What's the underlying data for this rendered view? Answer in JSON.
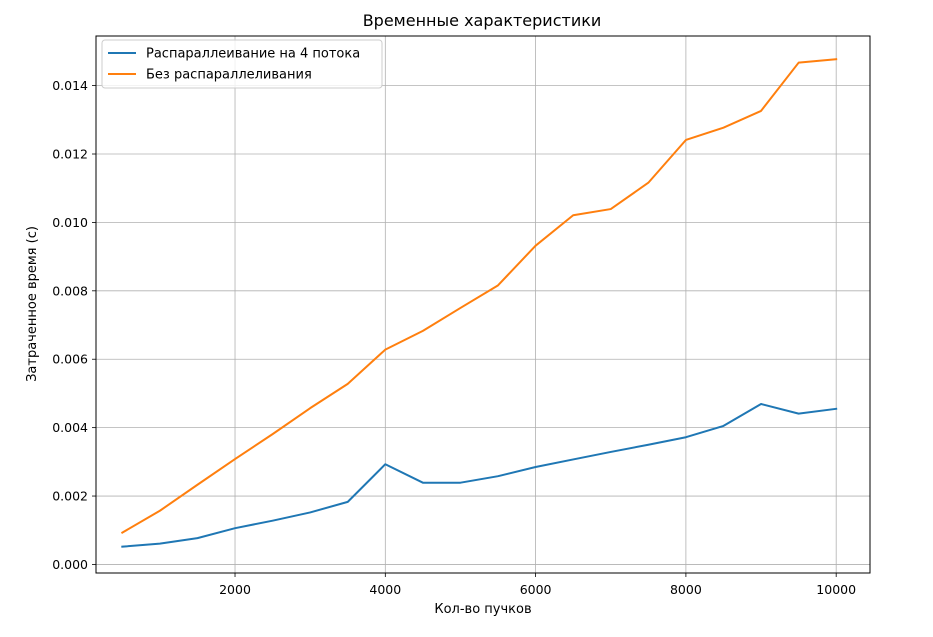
{
  "chart_data": {
    "type": "line",
    "title": "Временные характеристики",
    "xlabel": "Кол-во пучков",
    "ylabel": "Затраченное время (с)",
    "xlim": [
      150,
      10450
    ],
    "ylim": [
      -0.00025,
      0.01545
    ],
    "xticks": [
      2000,
      4000,
      6000,
      8000,
      10000
    ],
    "xtick_labels": [
      "2000",
      "4000",
      "6000",
      "8000",
      "10000"
    ],
    "yticks": [
      0,
      0.002,
      0.004,
      0.006,
      0.008,
      0.01,
      0.012,
      0.014
    ],
    "ytick_labels": [
      "0.000",
      "0.002",
      "0.004",
      "0.006",
      "0.008",
      "0.010",
      "0.012",
      "0.014"
    ],
    "grid": true,
    "legend_position": "top-left",
    "x": [
      500,
      1000,
      1500,
      2000,
      2500,
      3000,
      3500,
      4000,
      4500,
      5000,
      5500,
      6000,
      6500,
      7000,
      7500,
      8000,
      8500,
      9000,
      9500,
      10000
    ],
    "series": [
      {
        "name": "Распараллеивание на 4 потока",
        "color": "#1f77b4",
        "values": [
          0.00052,
          0.00061,
          0.00077,
          0.00106,
          0.00128,
          0.00152,
          0.00183,
          0.00293,
          0.00239,
          0.00239,
          0.00258,
          0.00285,
          0.00307,
          0.00329,
          0.0035,
          0.00372,
          0.00405,
          0.00469,
          0.00441,
          0.00455
        ]
      },
      {
        "name": "Без распараллеливания",
        "color": "#ff7f0e",
        "values": [
          0.00093,
          0.00157,
          0.00233,
          0.00308,
          0.00381,
          0.00457,
          0.00528,
          0.00628,
          0.00683,
          0.0075,
          0.00816,
          0.00932,
          0.01021,
          0.01039,
          0.01116,
          0.01241,
          0.01277,
          0.01326,
          0.01467,
          0.01477
        ]
      }
    ]
  }
}
